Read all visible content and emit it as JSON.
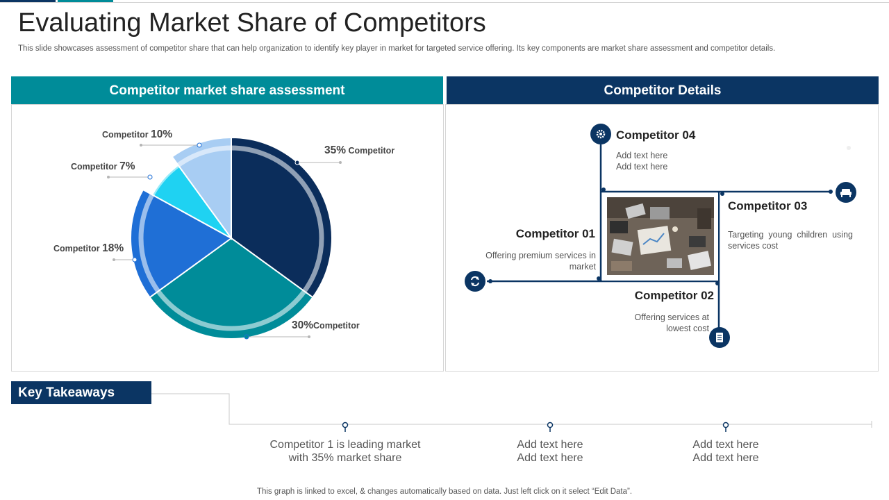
{
  "page": {
    "title": "Evaluating Market Share of Competitors",
    "subtitle": "This slide showcases assessment of competitor share that can help organization to identify key player in market for targeted service offering. Its key components are market share assessment and competitor details.",
    "footer": "This graph is linked to excel, & changes automatically based on data. Just left click on it select “Edit Data”."
  },
  "colors": {
    "navy": "#0b3563",
    "teal": "#008c99",
    "blue": "#1f6fd6",
    "cyan": "#1fd2f2",
    "light_blue": "#a8cdf3",
    "dark_navy": "#0b2d5b"
  },
  "left_panel": {
    "header": "Competitor market share assessment"
  },
  "right_panel": {
    "header": "Competitor Details"
  },
  "chart_data": {
    "type": "pie",
    "title": "Competitor market share assessment",
    "categories": [
      "Competitor",
      "Competitor",
      "Competitor",
      "Competitor",
      "Competitor"
    ],
    "values": [
      35,
      30,
      18,
      7,
      10
    ],
    "labels": [
      "35%",
      "30%",
      "18%",
      "7%",
      "10%"
    ],
    "slice_colors": [
      "#0b2d5b",
      "#008c99",
      "#1f6fd6",
      "#1fd2f2",
      "#a8cdf3"
    ]
  },
  "pie_labels": [
    {
      "pct": "35%",
      "name": "Competitor"
    },
    {
      "pct": "30%",
      "name": "Competitor"
    },
    {
      "pct": "18%",
      "name": "Competitor"
    },
    {
      "pct": "7%",
      "name": "Competitor"
    },
    {
      "pct": "10%",
      "name": "Competitor"
    }
  ],
  "competitors": {
    "c4": {
      "title": "Competitor 04",
      "line1": "Add text here",
      "line2": "Add text here",
      "icon": "gear-icon"
    },
    "c3": {
      "title": "Competitor 03",
      "text": "Targeting young children using services cost",
      "icon": "sofa-icon"
    },
    "c1": {
      "title": "Competitor 01",
      "text": "Offering premium services in market",
      "icon": "refresh-icon"
    },
    "c2": {
      "title": "Competitor 02",
      "text": "Offering services at lowest cost",
      "icon": "document-icon"
    }
  },
  "takeaways": {
    "header": "Key Takeaways",
    "items": [
      {
        "line1": "Competitor 1 is leading market",
        "line2": "with 35% market share"
      },
      {
        "line1": "Add text here",
        "line2": "Add text here"
      },
      {
        "line1": "Add text here",
        "line2": "Add text here"
      }
    ]
  }
}
